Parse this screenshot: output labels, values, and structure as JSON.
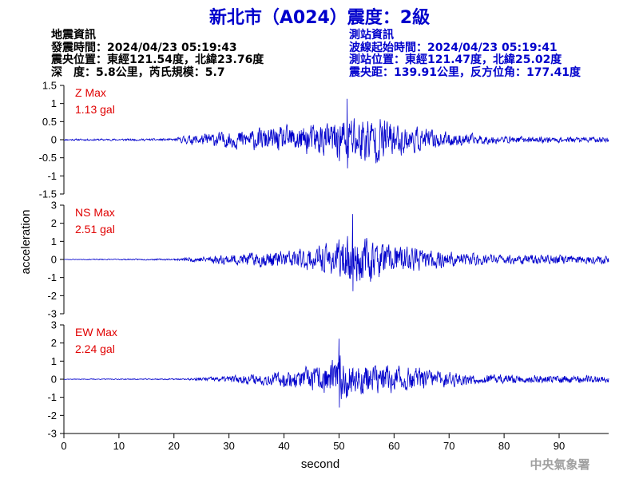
{
  "title": "新北市（A024）震度：2級",
  "event_info": {
    "heading": "地震資訊",
    "origin_time": "發震時間：2024/04/23 05:19:43",
    "epicenter": "震央位置：東經121.54度，北緯23.76度",
    "depth_magnitude": "深　度：5.8公里，芮氏規模：5.7"
  },
  "station_info": {
    "heading": "測站資訊",
    "wave_start": "波線起始時間：2024/04/23 05:19:41",
    "station_location": "測站位置：東經121.47度，北緯25.02度",
    "distance_azimuth": "震央距：139.91公里，反方位角：177.41度"
  },
  "agency": "中央氣象署",
  "colors": {
    "trace": "#0000cc",
    "title": "#0000cc",
    "max_label": "#e00000"
  },
  "chart_data": {
    "type": "line",
    "xlabel": "second",
    "ylabel": "acceleration",
    "xlim": [
      0,
      99
    ],
    "x_ticks": [
      0,
      10,
      20,
      30,
      40,
      50,
      60,
      70,
      80,
      90
    ],
    "grid": false,
    "panels": [
      {
        "name": "Z",
        "max_label": "Z Max",
        "max_value": "1.13 gal",
        "peak": 1.13,
        "peak_time": 51.5,
        "ylim": [
          -1.5,
          1.5
        ],
        "y_ticks": [
          1.5,
          1,
          0.5,
          0,
          -0.5,
          -1,
          -1.5
        ],
        "y_tick_labels": [
          "1.5",
          "1",
          "0.5",
          "0",
          "-0.5",
          "-1",
          "-1.5"
        ],
        "envelope": [
          [
            0,
            0.03
          ],
          [
            20,
            0.04
          ],
          [
            22,
            0.15
          ],
          [
            30,
            0.3
          ],
          [
            40,
            0.45
          ],
          [
            48,
            0.6
          ],
          [
            52,
            0.95
          ],
          [
            58,
            0.8
          ],
          [
            62,
            0.5
          ],
          [
            70,
            0.25
          ],
          [
            80,
            0.12
          ],
          [
            99,
            0.1
          ]
        ],
        "seed": 11
      },
      {
        "name": "NS",
        "max_label": "NS Max",
        "max_value": "2.51 gal",
        "peak": 2.51,
        "peak_time": 52.5,
        "ylim": [
          -3,
          3
        ],
        "y_ticks": [
          3,
          2,
          1,
          0,
          -1,
          -2,
          -3
        ],
        "y_tick_labels": [
          "3",
          "2",
          "1",
          "0",
          "-1",
          "-2",
          "-3"
        ],
        "envelope": [
          [
            0,
            0.02
          ],
          [
            20,
            0.06
          ],
          [
            24,
            0.2
          ],
          [
            35,
            0.5
          ],
          [
            45,
            0.8
          ],
          [
            50,
            1.3
          ],
          [
            53,
            1.8
          ],
          [
            58,
            1.2
          ],
          [
            65,
            0.7
          ],
          [
            72,
            0.5
          ],
          [
            80,
            0.35
          ],
          [
            99,
            0.3
          ]
        ],
        "seed": 23
      },
      {
        "name": "EW",
        "max_label": "EW Max",
        "max_value": "2.24 gal",
        "peak": 2.24,
        "peak_time": 50,
        "ylim": [
          -3,
          3
        ],
        "y_ticks": [
          3,
          2,
          1,
          0,
          -1,
          -2,
          -3
        ],
        "y_tick_labels": [
          "3",
          "2",
          "1",
          "0",
          "-1",
          "-2",
          "-3"
        ],
        "envelope": [
          [
            0,
            0.02
          ],
          [
            22,
            0.05
          ],
          [
            28,
            0.2
          ],
          [
            38,
            0.45
          ],
          [
            46,
            0.9
          ],
          [
            50,
            1.5
          ],
          [
            55,
            1.1
          ],
          [
            62,
            0.9
          ],
          [
            68,
            0.6
          ],
          [
            75,
            0.35
          ],
          [
            85,
            0.3
          ],
          [
            99,
            0.25
          ]
        ],
        "seed": 37
      }
    ]
  }
}
